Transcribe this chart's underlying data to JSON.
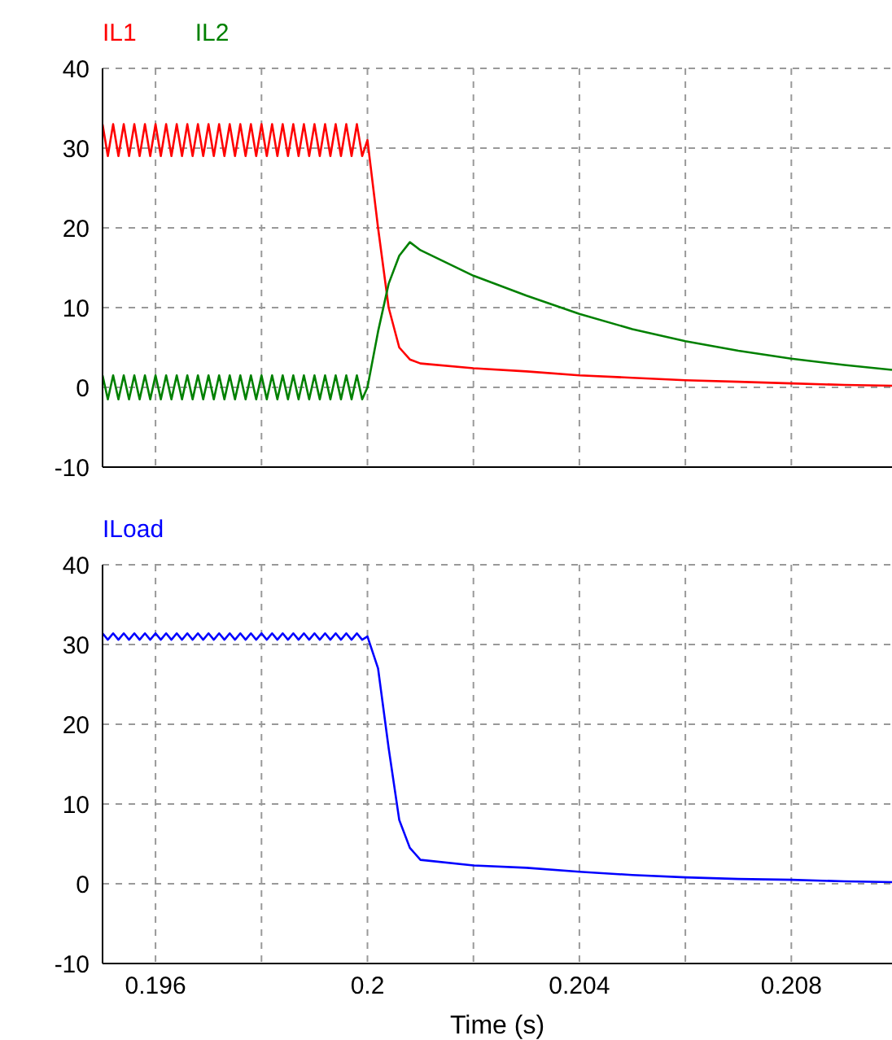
{
  "chart_data": [
    {
      "type": "line",
      "legend": "top left",
      "grid": true,
      "tick_labels": "y",
      "marker": "none",
      "line_style": "solid",
      "xlim": [
        0.195,
        0.2099
      ],
      "xticks": [
        0.196,
        0.198,
        0.2,
        0.202,
        0.204,
        0.206,
        0.208
      ],
      "ylim": [
        -10,
        40
      ],
      "yticks": [
        -10,
        0,
        10,
        20,
        30,
        40
      ],
      "x": [
        0.195,
        0.1951,
        0.1952,
        0.1953,
        0.1954,
        0.1955,
        0.1956,
        0.1957,
        0.1958,
        0.1959,
        0.196,
        0.1961,
        0.1962,
        0.1963,
        0.1964,
        0.1965,
        0.1966,
        0.1967,
        0.1968,
        0.1969,
        0.197,
        0.1971,
        0.1972,
        0.1973,
        0.1974,
        0.1975,
        0.1976,
        0.1977,
        0.1978,
        0.1979,
        0.198,
        0.1981,
        0.1982,
        0.1983,
        0.1984,
        0.1985,
        0.1986,
        0.1987,
        0.1988,
        0.1989,
        0.199,
        0.1991,
        0.1992,
        0.1993,
        0.1994,
        0.1995,
        0.1996,
        0.1997,
        0.1998,
        0.1999,
        0.2,
        0.2002,
        0.2004,
        0.2006,
        0.2008,
        0.201,
        0.202,
        0.203,
        0.204,
        0.205,
        0.206,
        0.207,
        0.208,
        0.209,
        0.2099
      ],
      "series": [
        {
          "name": "IL1",
          "color": "#ff0000",
          "values": [
            33,
            29,
            33,
            29,
            33,
            29,
            33,
            29,
            33,
            29,
            33,
            29,
            33,
            29,
            33,
            29,
            33,
            29,
            33,
            29,
            33,
            29,
            33,
            29,
            33,
            29,
            33,
            29,
            33,
            29,
            33,
            29,
            33,
            29,
            33,
            29,
            33,
            29,
            33,
            29,
            33,
            29,
            33,
            29,
            33,
            29,
            33,
            29,
            33,
            29,
            31,
            20,
            10,
            5,
            3.5,
            3,
            2.4,
            2,
            1.5,
            1.2,
            0.9,
            0.7,
            0.5,
            0.3,
            0.2
          ]
        },
        {
          "name": "IL2",
          "color": "#008000",
          "values": [
            1.5,
            -1.5,
            1.5,
            -1.5,
            1.5,
            -1.5,
            1.5,
            -1.5,
            1.5,
            -1.5,
            1.5,
            -1.5,
            1.5,
            -1.5,
            1.5,
            -1.5,
            1.5,
            -1.5,
            1.5,
            -1.5,
            1.5,
            -1.5,
            1.5,
            -1.5,
            1.5,
            -1.5,
            1.5,
            -1.5,
            1.5,
            -1.5,
            1.5,
            -1.5,
            1.5,
            -1.5,
            1.5,
            -1.5,
            1.5,
            -1.5,
            1.5,
            -1.5,
            1.5,
            -1.5,
            1.5,
            -1.5,
            1.5,
            -1.5,
            1.5,
            -1.5,
            1.5,
            -1.5,
            0,
            7,
            13,
            16.5,
            18.2,
            17.2,
            14,
            11.5,
            9.2,
            7.3,
            5.8,
            4.6,
            3.6,
            2.8,
            2.2
          ]
        }
      ]
    },
    {
      "type": "line",
      "legend": "top left",
      "grid": true,
      "marker": "none",
      "line_style": "solid",
      "xlabel": "Time (s)",
      "xlim": [
        0.195,
        0.2099
      ],
      "xticks": [
        {
          "value": 0.196,
          "label": "0.196"
        },
        {
          "value": 0.198,
          "label": null
        },
        {
          "value": 0.2,
          "label": "0.2"
        },
        {
          "value": 0.202,
          "label": null
        },
        {
          "value": 0.204,
          "label": "0.204"
        },
        {
          "value": 0.206,
          "label": null
        },
        {
          "value": 0.208,
          "label": "0.208"
        }
      ],
      "ylim": [
        -10,
        40
      ],
      "yticks": [
        -10,
        0,
        10,
        20,
        30,
        40
      ],
      "x": [
        0.195,
        0.1951,
        0.1952,
        0.1953,
        0.1954,
        0.1955,
        0.1956,
        0.1957,
        0.1958,
        0.1959,
        0.196,
        0.1961,
        0.1962,
        0.1963,
        0.1964,
        0.1965,
        0.1966,
        0.1967,
        0.1968,
        0.1969,
        0.197,
        0.1971,
        0.1972,
        0.1973,
        0.1974,
        0.1975,
        0.1976,
        0.1977,
        0.1978,
        0.1979,
        0.198,
        0.1981,
        0.1982,
        0.1983,
        0.1984,
        0.1985,
        0.1986,
        0.1987,
        0.1988,
        0.1989,
        0.199,
        0.1991,
        0.1992,
        0.1993,
        0.1994,
        0.1995,
        0.1996,
        0.1997,
        0.1998,
        0.1999,
        0.2,
        0.2002,
        0.2004,
        0.2006,
        0.2008,
        0.201,
        0.202,
        0.203,
        0.204,
        0.205,
        0.206,
        0.207,
        0.208,
        0.209,
        0.2099
      ],
      "series": [
        {
          "name": "ILoad",
          "color": "#0000ff",
          "values": [
            31.4,
            30.6,
            31.4,
            30.6,
            31.4,
            30.6,
            31.4,
            30.6,
            31.4,
            30.6,
            31.4,
            30.6,
            31.4,
            30.6,
            31.4,
            30.6,
            31.4,
            30.6,
            31.4,
            30.6,
            31.4,
            30.6,
            31.4,
            30.6,
            31.4,
            30.6,
            31.4,
            30.6,
            31.4,
            30.6,
            31.4,
            30.6,
            31.4,
            30.6,
            31.4,
            30.6,
            31.4,
            30.6,
            31.4,
            30.6,
            31.4,
            30.6,
            31.4,
            30.6,
            31.4,
            30.6,
            31.4,
            30.6,
            31.4,
            30.6,
            31,
            27,
            17,
            8,
            4.5,
            3,
            2.3,
            2,
            1.5,
            1.1,
            0.8,
            0.6,
            0.5,
            0.3,
            0.2
          ]
        }
      ]
    }
  ]
}
